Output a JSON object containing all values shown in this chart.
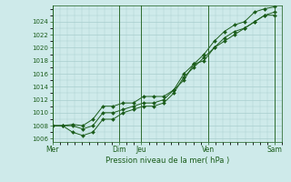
{
  "xlabel": "Pression niveau de la mer( hPa )",
  "ylim": [
    1005.5,
    1026.5
  ],
  "yticks": [
    1006,
    1008,
    1010,
    1012,
    1014,
    1016,
    1018,
    1020,
    1022,
    1024
  ],
  "x_day_labels": [
    "Mer",
    "Dim",
    "Jeu",
    "Ven",
    "Sam"
  ],
  "x_day_positions": [
    0.0,
    4.5,
    6.0,
    10.5,
    15.0
  ],
  "xlim": [
    0,
    15.5
  ],
  "background_color": "#ceeaea",
  "grid_color": "#a8cece",
  "line_color": "#1a5c1a",
  "series1": [
    1008.0,
    1008.0,
    1008.2,
    1008.0,
    1009.0,
    1011.0,
    1011.0,
    1011.5,
    1011.5,
    1012.5,
    1012.5,
    1012.5,
    1013.5,
    1015.0,
    1017.5,
    1018.0,
    1020.0,
    1021.5,
    1022.5,
    1023.0,
    1024.0,
    1025.0,
    1025.5
  ],
  "series2": [
    1008.0,
    1008.0,
    1007.0,
    1006.5,
    1007.0,
    1009.0,
    1009.0,
    1010.0,
    1010.5,
    1011.0,
    1011.0,
    1011.5,
    1013.0,
    1015.5,
    1017.0,
    1018.5,
    1020.0,
    1021.0,
    1022.0,
    1023.0,
    1024.0,
    1025.0,
    1025.0
  ],
  "series3": [
    1008.0,
    1008.0,
    1008.0,
    1007.5,
    1008.0,
    1010.0,
    1010.0,
    1010.5,
    1011.0,
    1011.5,
    1011.5,
    1012.0,
    1013.5,
    1016.0,
    1017.5,
    1019.0,
    1021.0,
    1022.5,
    1023.5,
    1024.0,
    1025.5,
    1026.0,
    1026.3
  ],
  "n_points": 23,
  "vline_color": "#2d6b2d",
  "vline_positions": [
    0.0,
    4.5,
    6.0,
    10.5,
    15.0
  ]
}
